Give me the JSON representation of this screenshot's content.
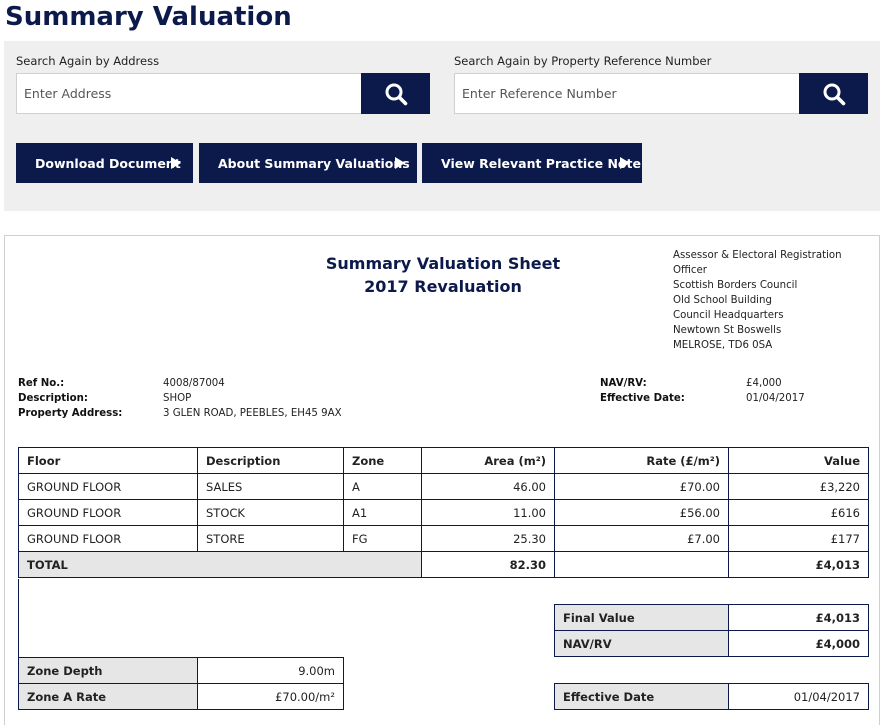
{
  "page": {
    "title": "Summary Valuation"
  },
  "search": {
    "address_label": "Search Again by Address",
    "address_placeholder": "Enter Address",
    "ref_label": "Search Again by Property Reference Number",
    "ref_placeholder": "Enter Reference Number"
  },
  "actions": {
    "download": "Download Document",
    "about": "About Summary Valuations",
    "practice": "View Relevant Practice Note"
  },
  "sheet": {
    "title_line1": "Summary Valuation Sheet",
    "title_line2": "2017 Revaluation",
    "assessor": [
      "Assessor & Electoral Registration",
      "Officer",
      "Scottish Borders Council",
      "Old School Building",
      "Council Headquarters",
      "Newtown St Boswells",
      "MELROSE, TD6 0SA"
    ],
    "ref_label": "Ref No.:",
    "ref_value": "4008/87004",
    "desc_label": "Description:",
    "desc_value": "SHOP",
    "addr_label": "Property Address:",
    "addr_value": "3 GLEN ROAD, PEEBLES, EH45 9AX",
    "nav_label": "NAV/RV:",
    "nav_value": "£4,000",
    "eff_label": "Effective Date:",
    "eff_value": "01/04/2017"
  },
  "table": {
    "headers": [
      "Floor",
      "Description",
      "Zone",
      "Area (m²)",
      "Rate (£/m²)",
      "Value"
    ],
    "rows": [
      [
        "GROUND FLOOR",
        "SALES",
        "A",
        "46.00",
        "£70.00",
        "£3,220"
      ],
      [
        "GROUND FLOOR",
        "STOCK",
        "A1",
        "11.00",
        "£56.00",
        "£616"
      ],
      [
        "GROUND FLOOR",
        "STORE",
        "FG",
        "25.30",
        "£7.00",
        "£177"
      ]
    ],
    "total_label": "TOTAL",
    "total_area": "82.30",
    "total_value": "£4,013"
  },
  "summary": {
    "final_value_label": "Final Value",
    "final_value": "£4,013",
    "nav_label": "NAV/RV",
    "nav_value": "£4,000",
    "effective_label": "Effective Date",
    "effective_value": "01/04/2017"
  },
  "zone": {
    "depth_label": "Zone Depth",
    "depth_value": "9.00m",
    "rate_label": "Zone A Rate",
    "rate_value": "£70.00/m²"
  },
  "icons": {
    "search": "search-icon",
    "arrow": "play-triangle-icon"
  },
  "colors": {
    "navy": "#0c1a4b",
    "panel_bg": "#efefef",
    "cell_shade": "#e6e6e6"
  }
}
